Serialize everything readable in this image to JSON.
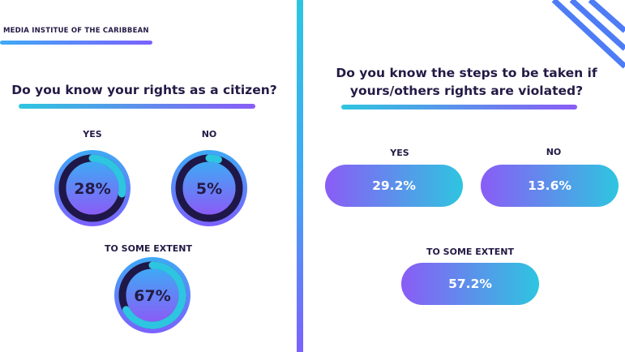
{
  "brand": "MEDIA INSTITUE OF THE CARIBBEAN",
  "left_question": "Do you know your rights as a citizen?",
  "right_question_line1": "Do you know the steps to be taken if",
  "right_question_line2": "yours/others rights are violated?",
  "chart_data": [
    {
      "type": "gauge",
      "title": "Do you know your rights as a citizen?",
      "categories": [
        "YES",
        "NO",
        "TO SOME EXTENT"
      ],
      "values": [
        28,
        5,
        67
      ],
      "value_labels": [
        "28%",
        "5%",
        "67%"
      ],
      "unit": "%"
    },
    {
      "type": "bar",
      "title": "Do you know the steps to be taken if yours/others rights are violated?",
      "categories": [
        "YES",
        "NO",
        "TO SOME EXTENT"
      ],
      "values": [
        29.2,
        13.6,
        57.2
      ],
      "value_labels": [
        "29.2%",
        "13.6%",
        "57.2%"
      ],
      "unit": "%"
    }
  ],
  "colors": {
    "dark": "#241a45",
    "ring_track": "#1f1747",
    "ring_arc": "#2ec5e0",
    "purple": "#8a5cf6",
    "blue": "#3fa9f5",
    "cyan": "#2ec5e0"
  }
}
